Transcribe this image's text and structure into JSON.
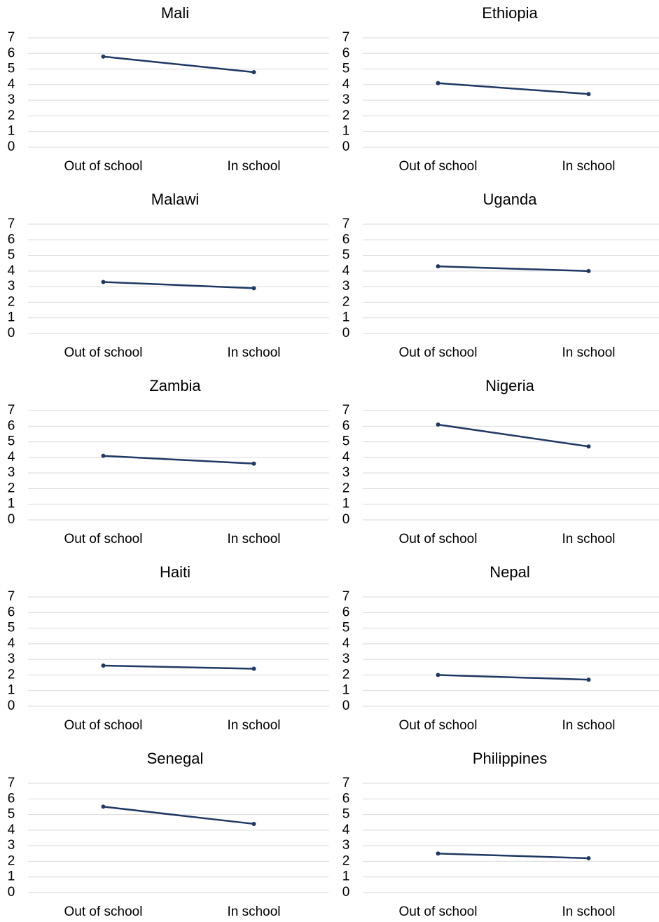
{
  "chart_data": [
    {
      "type": "line",
      "title": "Mali",
      "categories": [
        "Out of school",
        "In school"
      ],
      "values": [
        5.8,
        4.8
      ],
      "color": "#1f3864",
      "ylim": [
        0,
        7
      ],
      "yticks": [
        0,
        1,
        2,
        3,
        4,
        5,
        6,
        7
      ],
      "grid": true
    },
    {
      "type": "line",
      "title": "Ethiopia",
      "categories": [
        "Out of school",
        "In school"
      ],
      "values": [
        4.1,
        3.4
      ],
      "color": "#1f3864",
      "ylim": [
        0,
        7
      ],
      "yticks": [
        0,
        1,
        2,
        3,
        4,
        5,
        6,
        7
      ],
      "grid": true
    },
    {
      "type": "line",
      "title": "Malawi",
      "categories": [
        "Out of school",
        "In school"
      ],
      "values": [
        3.3,
        2.9
      ],
      "color": "#1f3864",
      "ylim": [
        0,
        7
      ],
      "yticks": [
        0,
        1,
        2,
        3,
        4,
        5,
        6,
        7
      ],
      "grid": true
    },
    {
      "type": "line",
      "title": "Uganda",
      "categories": [
        "Out of school",
        "In school"
      ],
      "values": [
        4.3,
        4.0
      ],
      "color": "#1f3864",
      "ylim": [
        0,
        7
      ],
      "yticks": [
        0,
        1,
        2,
        3,
        4,
        5,
        6,
        7
      ],
      "grid": true
    },
    {
      "type": "line",
      "title": "Zambia",
      "categories": [
        "Out of school",
        "In school"
      ],
      "values": [
        4.1,
        3.6
      ],
      "color": "#1f3864",
      "ylim": [
        0,
        7
      ],
      "yticks": [
        0,
        1,
        2,
        3,
        4,
        5,
        6,
        7
      ],
      "grid": true
    },
    {
      "type": "line",
      "title": "Nigeria",
      "categories": [
        "Out of school",
        "In school"
      ],
      "values": [
        6.1,
        4.7
      ],
      "color": "#1f3864",
      "ylim": [
        0,
        7
      ],
      "yticks": [
        0,
        1,
        2,
        3,
        4,
        5,
        6,
        7
      ],
      "grid": true
    },
    {
      "type": "line",
      "title": "Haiti",
      "categories": [
        "Out of school",
        "In school"
      ],
      "values": [
        2.6,
        2.4
      ],
      "color": "#1f3864",
      "ylim": [
        0,
        7
      ],
      "yticks": [
        0,
        1,
        2,
        3,
        4,
        5,
        6,
        7
      ],
      "grid": true
    },
    {
      "type": "line",
      "title": "Nepal",
      "categories": [
        "Out of school",
        "In school"
      ],
      "values": [
        2.0,
        1.7
      ],
      "color": "#1f3864",
      "ylim": [
        0,
        7
      ],
      "yticks": [
        0,
        1,
        2,
        3,
        4,
        5,
        6,
        7
      ],
      "grid": true
    },
    {
      "type": "line",
      "title": "Senegal",
      "categories": [
        "Out of school",
        "In school"
      ],
      "values": [
        5.5,
        4.4
      ],
      "color": "#1f3864",
      "ylim": [
        0,
        7
      ],
      "yticks": [
        0,
        1,
        2,
        3,
        4,
        5,
        6,
        7
      ],
      "grid": true
    },
    {
      "type": "line",
      "title": "Philippines",
      "categories": [
        "Out of school",
        "In school"
      ],
      "values": [
        2.5,
        2.2
      ],
      "color": "#1f3864",
      "ylim": [
        0,
        7
      ],
      "yticks": [
        0,
        1,
        2,
        3,
        4,
        5,
        6,
        7
      ],
      "grid": true
    }
  ]
}
